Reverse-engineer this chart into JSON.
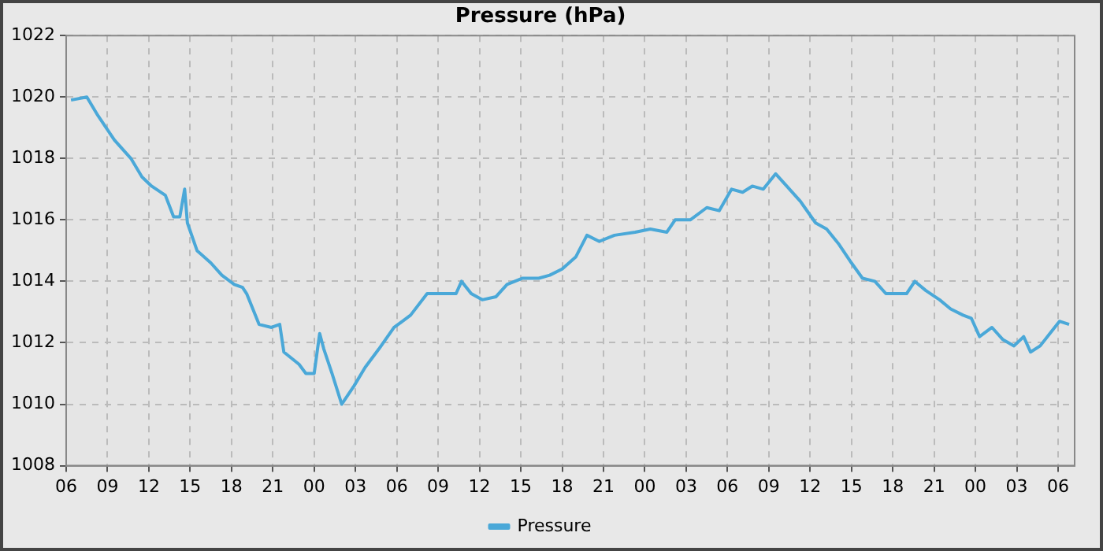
{
  "chart_data": {
    "type": "line",
    "title": "Pressure (hPa)",
    "x": [
      6.35,
      7.5,
      8.3,
      9.5,
      10.7,
      11.5,
      12.2,
      13.2,
      13.8,
      14.25,
      14.6,
      14.8,
      15.5,
      16.5,
      17.3,
      18.2,
      18.8,
      19.1,
      20.0,
      20.9,
      21.5,
      21.8,
      22.9,
      23.4,
      24.0,
      24.4,
      24.7,
      25.3,
      26.0,
      26.9,
      27.7,
      28.7,
      29.8,
      31.0,
      32.2,
      33.3,
      34.3,
      34.7,
      35.4,
      36.2,
      37.2,
      38.0,
      39.1,
      40.3,
      41.1,
      42.0,
      43.0,
      43.8,
      44.7,
      45.8,
      47.3,
      48.4,
      49.6,
      50.2,
      51.3,
      52.5,
      53.4,
      54.3,
      55.1,
      55.8,
      56.6,
      57.5,
      58.3,
      59.3,
      60.4,
      61.2,
      62.1,
      63.0,
      63.8,
      64.7,
      65.5,
      66.5,
      67.0,
      67.6,
      68.4,
      69.4,
      70.2,
      71.1,
      71.7,
      72.3,
      73.2,
      74.0,
      74.8,
      75.5,
      76.0,
      76.7,
      77.4,
      78.1,
      78.8
    ],
    "series": [
      {
        "name": "Pressure",
        "color": "#4aa8d8",
        "values": [
          1019.9,
          1020.0,
          1019.4,
          1018.6,
          1018.0,
          1017.4,
          1017.1,
          1016.8,
          1016.1,
          1016.1,
          1017.0,
          1015.9,
          1015.0,
          1014.6,
          1014.2,
          1013.9,
          1013.8,
          1013.6,
          1012.6,
          1012.5,
          1012.6,
          1011.7,
          1011.3,
          1011.0,
          1011.0,
          1012.3,
          1011.8,
          1011.0,
          1010.0,
          1010.6,
          1011.2,
          1011.8,
          1012.5,
          1012.9,
          1013.6,
          1013.6,
          1013.6,
          1014.0,
          1013.6,
          1013.4,
          1013.5,
          1013.9,
          1014.1,
          1014.1,
          1014.2,
          1014.4,
          1014.8,
          1015.5,
          1015.3,
          1015.5,
          1015.6,
          1015.7,
          1015.6,
          1016.0,
          1016.0,
          1016.4,
          1016.3,
          1017.0,
          1016.9,
          1017.1,
          1017.0,
          1017.5,
          1017.1,
          1016.6,
          1015.9,
          1015.7,
          1015.2,
          1014.6,
          1014.1,
          1014.0,
          1013.6,
          1013.6,
          1013.6,
          1014.0,
          1013.7,
          1013.4,
          1013.1,
          1012.9,
          1012.8,
          1012.2,
          1012.5,
          1012.1,
          1011.9,
          1012.2,
          1011.7,
          1011.9,
          1012.3,
          1012.7,
          1012.6
        ]
      }
    ],
    "xlim": [
      6,
      79.2
    ],
    "xticks": [
      {
        "value": 6,
        "label": "06"
      },
      {
        "value": 9,
        "label": "09"
      },
      {
        "value": 12,
        "label": "12"
      },
      {
        "value": 15,
        "label": "15"
      },
      {
        "value": 18,
        "label": "18"
      },
      {
        "value": 21,
        "label": "21"
      },
      {
        "value": 24,
        "label": "00"
      },
      {
        "value": 27,
        "label": "03"
      },
      {
        "value": 30,
        "label": "06"
      },
      {
        "value": 33,
        "label": "09"
      },
      {
        "value": 36,
        "label": "12"
      },
      {
        "value": 39,
        "label": "15"
      },
      {
        "value": 42,
        "label": "18"
      },
      {
        "value": 45,
        "label": "21"
      },
      {
        "value": 48,
        "label": "00"
      },
      {
        "value": 51,
        "label": "03"
      },
      {
        "value": 54,
        "label": "06"
      },
      {
        "value": 57,
        "label": "09"
      },
      {
        "value": 60,
        "label": "12"
      },
      {
        "value": 63,
        "label": "15"
      },
      {
        "value": 66,
        "label": "18"
      },
      {
        "value": 69,
        "label": "21"
      },
      {
        "value": 72,
        "label": "00"
      },
      {
        "value": 75,
        "label": "03"
      },
      {
        "value": 78,
        "label": "06"
      }
    ],
    "ylim": [
      1008,
      1022
    ],
    "yticks": [
      1008,
      1010,
      1012,
      1014,
      1016,
      1018,
      1020,
      1022
    ],
    "grid": true,
    "legend": "bottom",
    "marker": "none",
    "line_style": "solid"
  }
}
